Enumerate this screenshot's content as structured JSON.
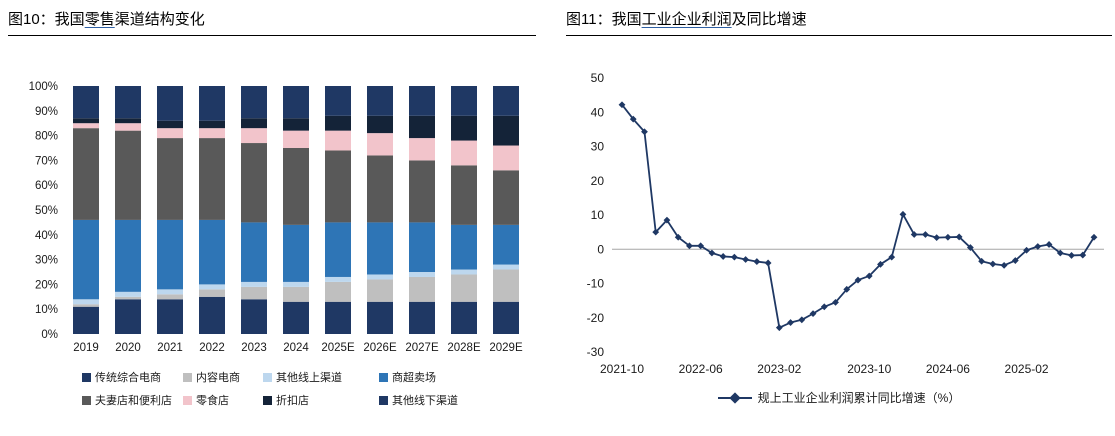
{
  "figure10": {
    "title_prefix": "图10：我国",
    "title_underline": "零售",
    "title_suffix": "渠道结构变化"
  },
  "figure11": {
    "title_prefix": "图11：我国",
    "title_underline": "工业企业利润",
    "title_suffix": "及同比增速"
  },
  "chart_data": [
    {
      "type": "bar",
      "stacked": true,
      "title": "我国零售渠道结构变化",
      "categories": [
        "2019",
        "2020",
        "2021",
        "2022",
        "2023",
        "2024",
        "2025E",
        "2026E",
        "2027E",
        "2028E",
        "2029E"
      ],
      "y_ticks": [
        "0%",
        "10%",
        "20%",
        "30%",
        "40%",
        "50%",
        "60%",
        "70%",
        "80%",
        "90%",
        "100%"
      ],
      "ylim": [
        0,
        100
      ],
      "legend_position": "bottom",
      "grid": false,
      "series": [
        {
          "name": "传统综合电商",
          "color": "#1F3864",
          "values": [
            11,
            14,
            14,
            15,
            14,
            13,
            13,
            13,
            13,
            13,
            13
          ]
        },
        {
          "name": "内容电商",
          "color": "#BFBFBF",
          "values": [
            1,
            1,
            2,
            3,
            5,
            6,
            8,
            9,
            10,
            11,
            13
          ]
        },
        {
          "name": "其他线上渠道",
          "color": "#BDD7EE",
          "values": [
            2,
            2,
            2,
            2,
            2,
            2,
            2,
            2,
            2,
            2,
            2
          ]
        },
        {
          "name": "商超卖场",
          "color": "#2E75B6",
          "values": [
            32,
            29,
            28,
            26,
            24,
            23,
            22,
            21,
            20,
            18,
            16
          ]
        },
        {
          "name": "夫妻店和便利店",
          "color": "#595959",
          "values": [
            37,
            36,
            33,
            33,
            32,
            31,
            29,
            27,
            25,
            24,
            22
          ]
        },
        {
          "name": "零食店",
          "color": "#F2C4CB",
          "values": [
            2,
            3,
            4,
            4,
            6,
            7,
            8,
            9,
            9,
            10,
            10
          ]
        },
        {
          "name": "折扣店",
          "color": "#142338",
          "values": [
            2,
            2,
            3,
            3,
            4,
            5,
            6,
            7,
            9,
            10,
            12
          ]
        },
        {
          "name": "其他线下渠道",
          "color": "#1F3864",
          "values": [
            13,
            13,
            14,
            14,
            13,
            13,
            12,
            12,
            12,
            12,
            12
          ]
        }
      ]
    },
    {
      "type": "line",
      "title": "我国工业企业利润及同比增速",
      "series_name": "规上工业企业利润累计同比增速（%）",
      "color": "#1F3864",
      "marker": "diamond",
      "ylim": [
        -30,
        50
      ],
      "y_ticks": [
        50,
        40,
        30,
        20,
        10,
        0,
        -10,
        -20,
        -30
      ],
      "zero_line": true,
      "x_tick_labels": [
        "2021-10",
        "2022-06",
        "2023-02",
        "2023-10",
        "2024-06",
        "2025-02"
      ],
      "x_tick_indices": [
        0,
        7,
        14,
        22,
        29,
        36
      ],
      "x": [
        "2021-10",
        "2021-11",
        "2021-12",
        "2022-02",
        "2022-03",
        "2022-04",
        "2022-05",
        "2022-06",
        "2022-07",
        "2022-08",
        "2022-09",
        "2022-10",
        "2022-11",
        "2022-12",
        "2023-02",
        "2023-03",
        "2023-04",
        "2023-05",
        "2023-06",
        "2023-07",
        "2023-08",
        "2023-09",
        "2023-10",
        "2023-11",
        "2023-12",
        "2024-02",
        "2024-03",
        "2024-04",
        "2024-05",
        "2024-06",
        "2024-07",
        "2024-08",
        "2024-09",
        "2024-10",
        "2024-11",
        "2024-12",
        "2025-02",
        "2025-03",
        "2025-04",
        "2025-05",
        "2025-06",
        "2025-07",
        "2025-08"
      ],
      "values": [
        42.2,
        38.0,
        34.3,
        5.0,
        8.5,
        3.5,
        1.0,
        1.0,
        -1.1,
        -2.1,
        -2.3,
        -3.0,
        -3.6,
        -4.0,
        -22.9,
        -21.4,
        -20.6,
        -18.8,
        -16.8,
        -15.5,
        -11.7,
        -9.0,
        -7.8,
        -4.4,
        -2.3,
        10.2,
        4.3,
        4.3,
        3.4,
        3.5,
        3.6,
        0.5,
        -3.5,
        -4.3,
        -4.7,
        -3.3,
        -0.3,
        0.8,
        1.4,
        -1.1,
        -1.8,
        -1.7,
        3.5
      ]
    }
  ]
}
